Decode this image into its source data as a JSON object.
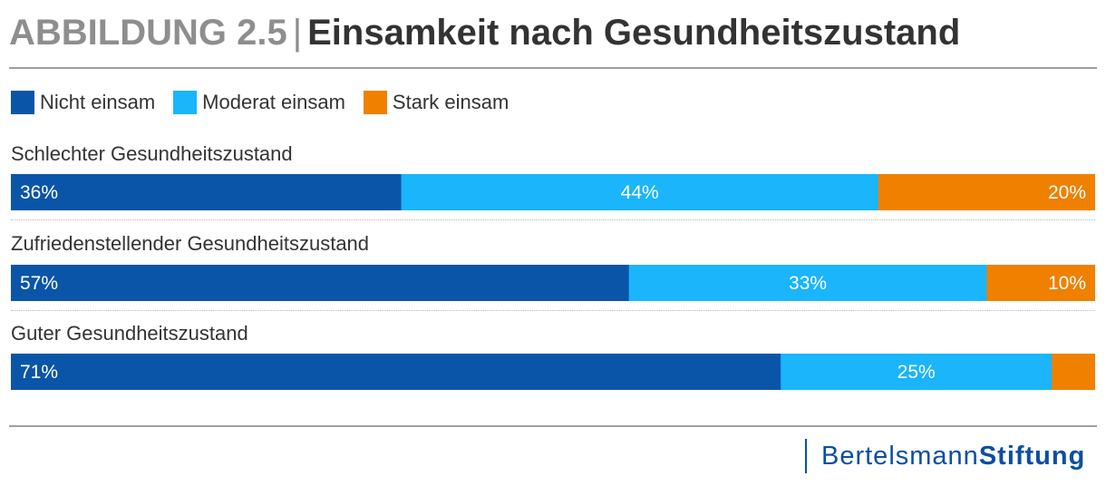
{
  "title": {
    "prefix": "ABBILDUNG 2.5",
    "separator": "|",
    "text": "Einsamkeit nach Gesundheitszustand"
  },
  "colors": {
    "nicht": "#0b55a8",
    "moderat": "#1ab5fb",
    "stark": "#f08000",
    "brand": "#0b4ea2"
  },
  "logo": {
    "part1": "Bertelsmann",
    "part2": "Stiftung"
  },
  "chart_data": {
    "type": "bar",
    "orientation": "horizontal",
    "stacked": true,
    "normalized_percent": true,
    "title": "Einsamkeit nach Gesundheitszustand",
    "categories": [
      "Schlechter Gesundheitszustand",
      "Zufriedenstellender Gesundheitszustand",
      "Guter Gesundheitszustand"
    ],
    "series": [
      {
        "name": "Nicht einsam",
        "color": "#0b55a8",
        "values": [
          36,
          57,
          71
        ],
        "labels": [
          "36%",
          "57%",
          "71%"
        ]
      },
      {
        "name": "Moderat einsam",
        "color": "#1ab5fb",
        "values": [
          44,
          33,
          25
        ],
        "labels": [
          "44%",
          "33%",
          "25%"
        ]
      },
      {
        "name": "Stark einsam",
        "color": "#f08000",
        "values": [
          20,
          10,
          4
        ],
        "labels": [
          "20%",
          "10%",
          ""
        ]
      }
    ],
    "legend_position": "top-left",
    "xlim": [
      0,
      100
    ]
  }
}
